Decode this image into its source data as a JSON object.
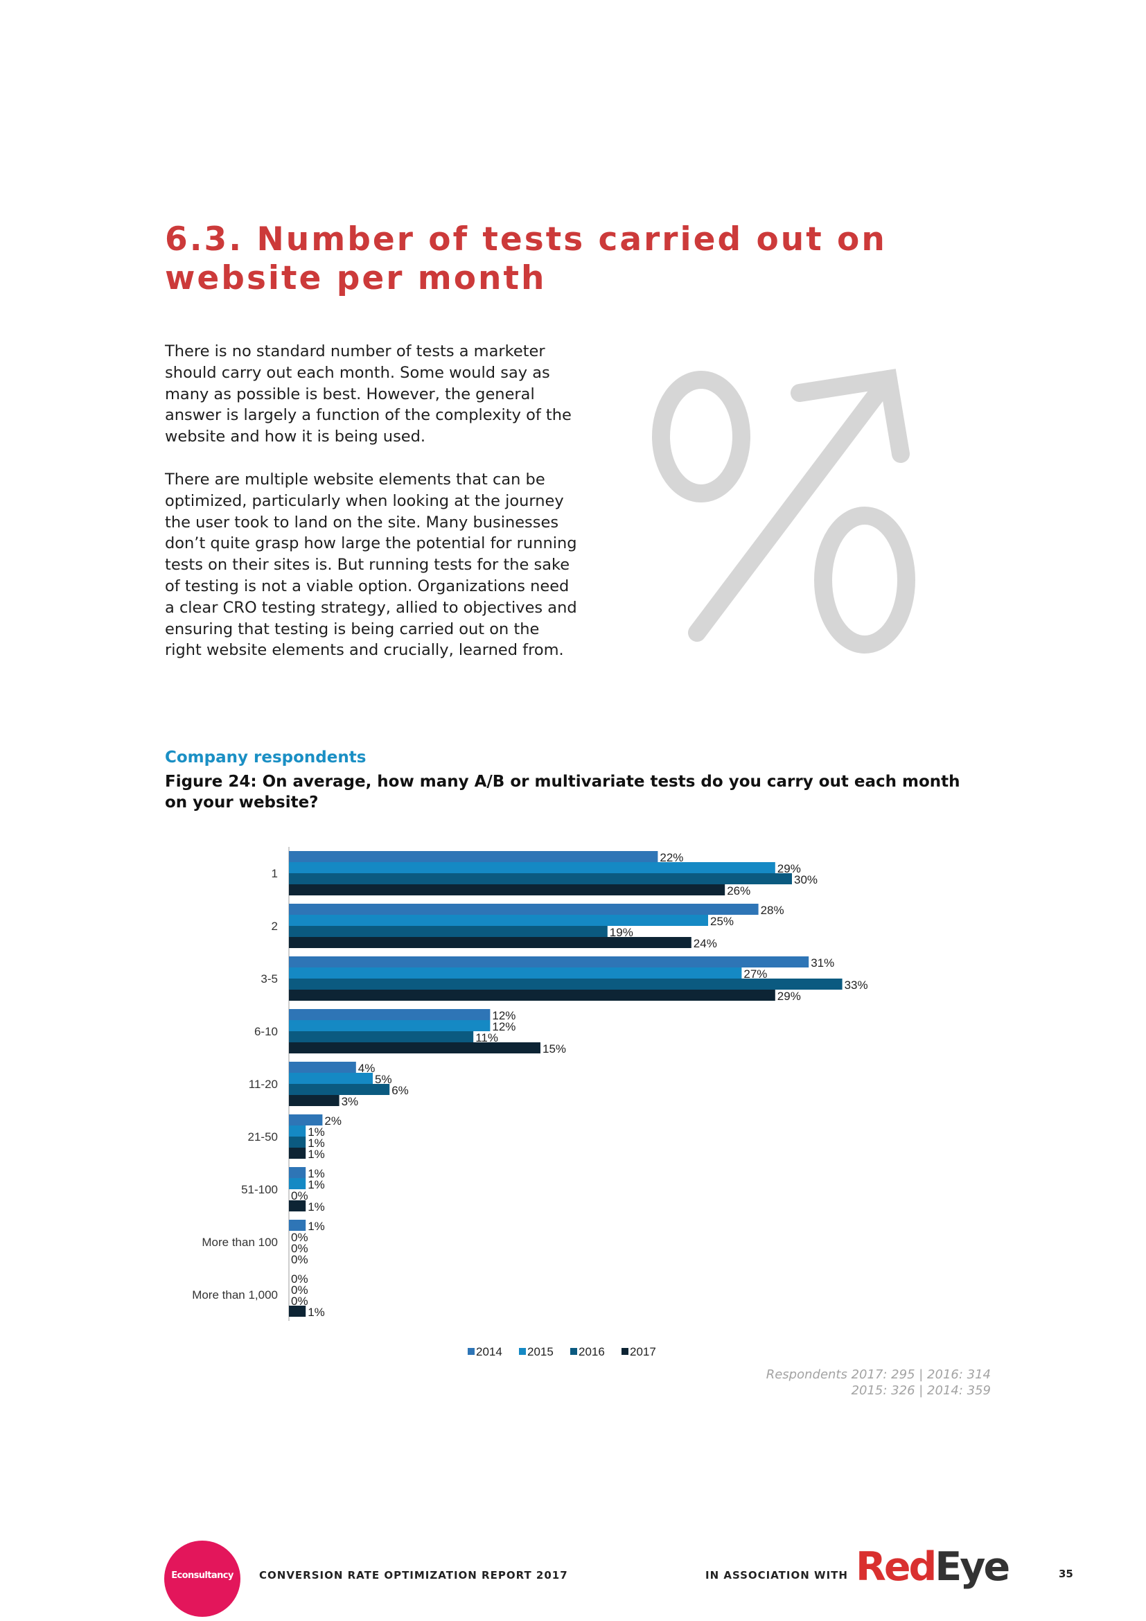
{
  "page": {
    "title": "6.3. Number of tests carried out on website per month",
    "intro_paragraphs": [
      "There is no standard number of tests a marketer should carry out each month. Some would say as many as possible is best. However, the general answer is largely a function of the complexity of the website and how it is being used.",
      "There are multiple website elements that can be optimized, particularly when looking at the journey the user took to land on the site. Many businesses don’t quite grasp how large the potential for running tests on their sites is. But running tests for the sake of testing is not a viable option. Organizations need a clear CRO testing strategy, allied to objectives and ensuring that testing is being carried out on the right website elements and crucially, learned from."
    ],
    "section_label": "Company respondents",
    "figure_title": "Figure 24: On average, how many A/B or multivariate tests do you carry out each month on your website?",
    "respondents": [
      "Respondents 2017: 295 | 2016: 314",
      "2015: 326 | 2014: 359"
    ]
  },
  "graphic": {
    "icon": "percent-up-arrow-icon",
    "color": "#d6d6d6"
  },
  "chart_data": {
    "type": "bar",
    "orientation": "horizontal",
    "title": "Figure 24: On average, how many A/B or multivariate tests do you carry out each month on your website?",
    "xlabel": "",
    "ylabel": "",
    "xlim": [
      0,
      35
    ],
    "grid": false,
    "legend_position": "bottom",
    "value_suffix": "%",
    "categories": [
      "1",
      "2",
      "3-5",
      "6-10",
      "11-20",
      "21-50",
      "51-100",
      "More than 100",
      "More than 1,000"
    ],
    "series": [
      {
        "name": "2014",
        "color": "#2e75b6",
        "values": [
          22,
          28,
          31,
          12,
          4,
          2,
          1,
          1,
          0
        ]
      },
      {
        "name": "2015",
        "color": "#1589c4",
        "values": [
          29,
          25,
          27,
          12,
          5,
          1,
          1,
          0,
          0
        ]
      },
      {
        "name": "2016",
        "color": "#0b5a80",
        "values": [
          30,
          19,
          33,
          11,
          6,
          1,
          0,
          0,
          0
        ]
      },
      {
        "name": "2017",
        "color": "#0d2434",
        "values": [
          26,
          24,
          29,
          15,
          3,
          1,
          1,
          0,
          1
        ]
      }
    ]
  },
  "footer": {
    "logo_text": "Econsultancy",
    "logo_color": "#e3165b",
    "report_name": "CONVERSION RATE OPTIMIZATION REPORT 2017",
    "association": "IN ASSOCIATION WITH",
    "partner_logo_a": "Red",
    "partner_logo_b": "Eye",
    "partner_color": "#d9302f",
    "page_number": "35"
  }
}
